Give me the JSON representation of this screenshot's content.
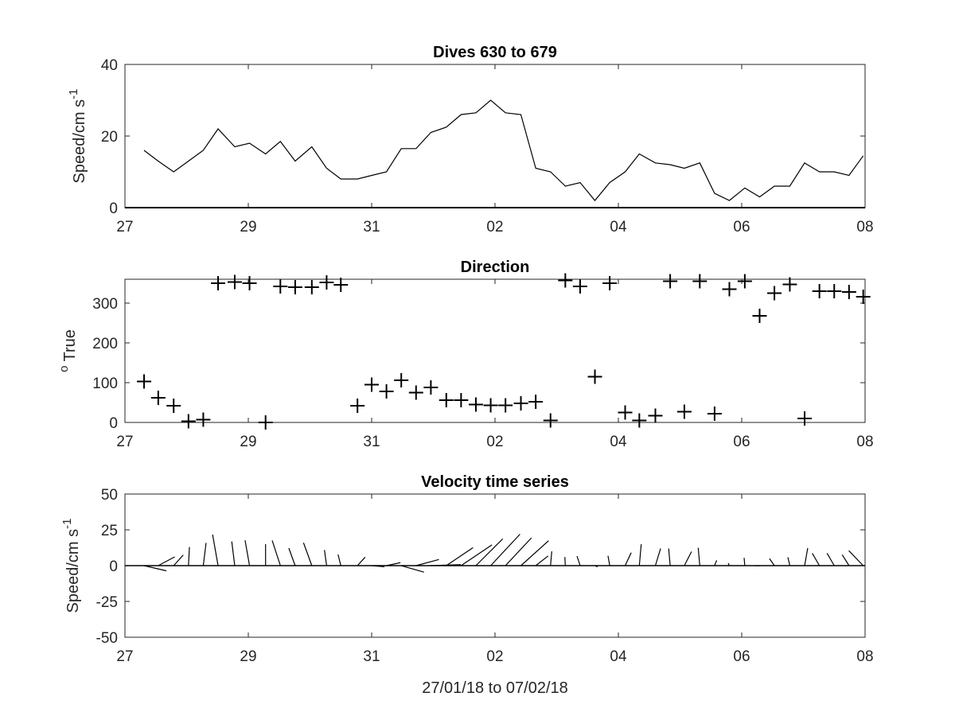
{
  "chart_data": [
    {
      "type": "line",
      "title": "Dives 630 to 679",
      "ylabel": "Speed/cm s",
      "ylabel_superscript": "-1",
      "xlabel": "",
      "xlim": [
        "27/01/18",
        "08/02/18"
      ],
      "xticklabels": [
        "27",
        "29",
        "31",
        "02",
        "04",
        "06",
        "08"
      ],
      "ylim": [
        0,
        40
      ],
      "yticks": [
        0,
        20,
        40
      ],
      "grid": false,
      "series": [
        {
          "color": "#000000",
          "x": [
            0.31,
            0.54,
            0.79,
            1.03,
            1.27,
            1.51,
            1.78,
            2.02,
            2.28,
            2.52,
            2.76,
            3.03,
            3.27,
            3.5,
            3.77,
            4.0,
            4.24,
            4.48,
            4.72,
            4.96,
            5.21,
            5.45,
            5.69,
            5.93,
            6.17,
            6.42,
            6.66,
            6.9,
            7.14,
            7.38,
            7.62,
            7.86,
            8.11,
            8.34,
            8.6,
            8.84,
            9.07,
            9.32,
            9.56,
            9.8,
            10.05,
            10.29,
            10.53,
            10.78,
            11.02,
            11.26,
            11.5,
            11.74,
            11.97
          ],
          "y": [
            16,
            13,
            10,
            13,
            16,
            22,
            17,
            18,
            15,
            18.5,
            13,
            17,
            11,
            8,
            8,
            9,
            10,
            16.5,
            16.5,
            21,
            22.5,
            26,
            26.5,
            30,
            26.5,
            26,
            11,
            10,
            6,
            7,
            2,
            7,
            10,
            15,
            12.5,
            12,
            11,
            12.5,
            4,
            2,
            5.5,
            3,
            6,
            6,
            12.5,
            10,
            10,
            9,
            14.5
          ]
        }
      ]
    },
    {
      "type": "scatter",
      "title": "Direction",
      "ylabel": "True",
      "ylabel_superscript": "o",
      "xlabel": "",
      "xlim": [
        "27/01/18",
        "08/02/18"
      ],
      "xticklabels": [
        "27",
        "29",
        "31",
        "02",
        "04",
        "06",
        "08"
      ],
      "ylim": [
        0,
        360
      ],
      "yticks": [
        0,
        100,
        200,
        300
      ],
      "grid": false,
      "marker": "+",
      "series": [
        {
          "color": "#000000",
          "x": [
            0.31,
            0.54,
            0.79,
            1.03,
            1.27,
            1.51,
            1.78,
            2.02,
            2.28,
            2.52,
            2.76,
            3.03,
            3.27,
            3.5,
            3.77,
            4.0,
            4.24,
            4.48,
            4.72,
            4.96,
            5.21,
            5.45,
            5.69,
            5.93,
            6.17,
            6.42,
            6.66,
            6.9,
            7.14,
            7.38,
            7.62,
            7.86,
            8.11,
            8.34,
            8.6,
            8.84,
            9.07,
            9.32,
            9.56,
            9.8,
            10.05,
            10.29,
            10.53,
            10.78,
            11.02,
            11.26,
            11.5,
            11.74,
            11.97
          ],
          "y": [
            103,
            62,
            42,
            3,
            7,
            350,
            353,
            350,
            0,
            342,
            340,
            340,
            352,
            346,
            42,
            95,
            78,
            106,
            75,
            88,
            56,
            56,
            45,
            43,
            43,
            48,
            52,
            5,
            357,
            342,
            115,
            350,
            25,
            5,
            17,
            355,
            27,
            355,
            22,
            335,
            355,
            268,
            325,
            347,
            10,
            330,
            330,
            328,
            316
          ]
        }
      ]
    },
    {
      "type": "vector",
      "title": "Velocity time series",
      "ylabel": "Speed/cm s",
      "ylabel_superscript": "-1",
      "xlabel": "27/01/18 to 07/02/18",
      "xlim": [
        "27/01/18",
        "08/02/18"
      ],
      "xticklabels": [
        "27",
        "29",
        "31",
        "02",
        "04",
        "06",
        "08"
      ],
      "ylim": [
        -50,
        50
      ],
      "yticks": [
        -50,
        -25,
        0,
        25,
        50
      ],
      "grid": false,
      "note": "stick plot built from the speed and direction series above (direction measured clockwise from north = up)"
    }
  ]
}
